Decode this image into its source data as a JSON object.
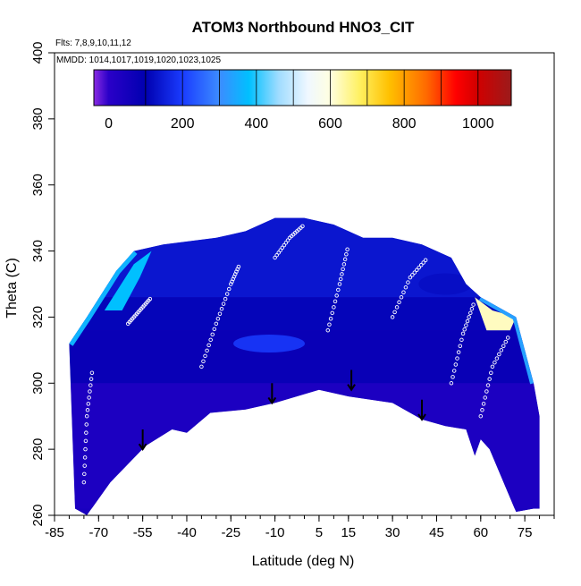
{
  "chart_data": {
    "type": "heatmap",
    "title": "ATOM3 Northbound HNO3_CIT",
    "annotations": {
      "flights": "Flts: 7,8,9,10,11,12",
      "dates": "MMDD: 1014,1017,1019,1020,1023,1025"
    },
    "xlabel": "Latitude (deg N)",
    "ylabel": "Theta (C)",
    "xlim": [
      -85,
      85
    ],
    "ylim": [
      260,
      400
    ],
    "x_ticks": [
      -85,
      -70,
      -55,
      -40,
      -25,
      -10,
      5,
      15,
      30,
      45,
      60,
      75
    ],
    "y_ticks": [
      260,
      280,
      300,
      320,
      340,
      360,
      380,
      400
    ],
    "colorbar": {
      "range": [
        -40,
        1090
      ],
      "ticks": [
        0,
        200,
        400,
        600,
        800,
        1000
      ],
      "stops": [
        {
          "value": -40,
          "color": "#8a2be2"
        },
        {
          "value": 0,
          "color": "#2a00c8"
        },
        {
          "value": 100,
          "color": "#0000b0"
        },
        {
          "value": 200,
          "color": "#1a3cff"
        },
        {
          "value": 300,
          "color": "#3c8cff"
        },
        {
          "value": 380,
          "color": "#00c0ff"
        },
        {
          "value": 460,
          "color": "#a0dcff"
        },
        {
          "value": 540,
          "color": "#f0f8ff"
        },
        {
          "value": 600,
          "color": "#ffffe0"
        },
        {
          "value": 680,
          "color": "#fff060"
        },
        {
          "value": 760,
          "color": "#ffc000"
        },
        {
          "value": 860,
          "color": "#ff6a00"
        },
        {
          "value": 940,
          "color": "#ff0000"
        },
        {
          "value": 1000,
          "color": "#d00000"
        },
        {
          "value": 1090,
          "color": "#9b1b1b"
        }
      ]
    },
    "domain_bottom": [
      [
        -74,
        260
      ],
      [
        -66,
        270
      ],
      [
        -54,
        281
      ],
      [
        -45,
        286
      ],
      [
        -40,
        285
      ],
      [
        -32,
        291
      ],
      [
        -20,
        292
      ],
      [
        -10,
        294
      ],
      [
        5,
        298
      ],
      [
        15,
        296
      ],
      [
        30,
        294
      ],
      [
        40,
        289
      ],
      [
        48,
        287
      ],
      [
        55,
        286
      ],
      [
        58,
        278
      ],
      [
        60,
        283
      ],
      [
        63,
        280
      ],
      [
        72,
        261
      ],
      [
        78,
        262
      ]
    ],
    "domain_top": [
      [
        -78,
        262
      ],
      [
        -80,
        312
      ],
      [
        -74,
        320
      ],
      [
        -64,
        334
      ],
      [
        -58,
        340
      ],
      [
        -48,
        342
      ],
      [
        -30,
        344
      ],
      [
        -20,
        346
      ],
      [
        -10,
        350
      ],
      [
        0,
        350
      ],
      [
        10,
        348
      ],
      [
        20,
        344
      ],
      [
        30,
        344
      ],
      [
        40,
        342
      ],
      [
        50,
        338
      ],
      [
        55,
        330
      ],
      [
        60,
        326
      ],
      [
        72,
        320
      ],
      [
        78,
        300
      ],
      [
        80,
        290
      ],
      [
        80,
        262
      ]
    ],
    "high_regions": [
      {
        "label": "",
        "value": 380,
        "points": [
          [
            -68,
            322
          ],
          [
            -58,
            336
          ],
          [
            -52,
            340
          ],
          [
            -56,
            332
          ],
          [
            -62,
            322
          ]
        ]
      },
      {
        "label": "",
        "value": 620,
        "points": [
          [
            58,
            326
          ],
          [
            64,
            322
          ],
          [
            72,
            320
          ],
          [
            70,
            316
          ],
          [
            62,
            316
          ]
        ]
      }
    ],
    "arrows": [
      {
        "x": -55,
        "y_from": 286,
        "y_to": 280
      },
      {
        "x": -11,
        "y_from": 300,
        "y_to": 294
      },
      {
        "x": 16,
        "y_from": 304,
        "y_to": 298
      },
      {
        "x": 40,
        "y_from": 295,
        "y_to": 289
      }
    ],
    "tracks": [
      [
        [
          -60,
          318
        ],
        [
          -56,
          322
        ],
        [
          -52,
          326
        ]
      ],
      [
        [
          -35,
          305
        ],
        [
          -30,
          318
        ],
        [
          -25,
          330
        ],
        [
          -22,
          336
        ]
      ],
      [
        [
          -10,
          338
        ],
        [
          -5,
          344
        ],
        [
          0,
          348
        ]
      ],
      [
        [
          8,
          316
        ],
        [
          12,
          330
        ],
        [
          15,
          342
        ]
      ],
      [
        [
          30,
          320
        ],
        [
          36,
          332
        ],
        [
          42,
          338
        ]
      ],
      [
        [
          50,
          300
        ],
        [
          54,
          315
        ],
        [
          58,
          325
        ]
      ],
      [
        [
          60,
          290
        ],
        [
          64,
          305
        ],
        [
          70,
          315
        ]
      ],
      [
        [
          -75,
          270
        ],
        [
          -74,
          290
        ],
        [
          -72,
          305
        ]
      ]
    ]
  }
}
